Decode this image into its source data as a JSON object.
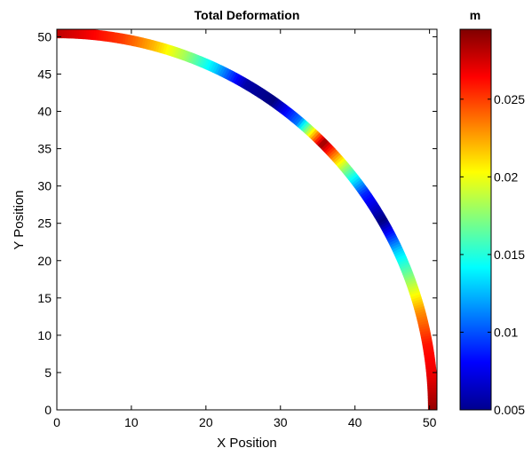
{
  "chart_data": {
    "type": "scatter",
    "title": "Total Deformation",
    "xlabel": "X Position",
    "ylabel": "Y Position",
    "xlim": [
      0,
      51
    ],
    "ylim": [
      0,
      51
    ],
    "xticks": [
      0,
      10,
      20,
      30,
      40,
      50
    ],
    "yticks": [
      0,
      5,
      10,
      15,
      20,
      25,
      30,
      35,
      40,
      45,
      50
    ],
    "grid": false,
    "shape": "quarter-circle arc (thin ring) from (0, 50.5) to (50.5, 0)",
    "inner_radius": 49.8,
    "outer_radius": 51.2,
    "series": [
      {
        "x": [
          0,
          3.5,
          8.8,
          13.1,
          17.3,
          21.3,
          25.3,
          29.0,
          32.5,
          35.7,
          38.7,
          41.3,
          43.7,
          45.8,
          47.5,
          48.8,
          49.8,
          50.3,
          50.5
        ],
        "y": [
          50.5,
          50.4,
          49.7,
          48.8,
          47.4,
          45.7,
          43.6,
          41.3,
          38.7,
          35.7,
          32.5,
          29.0,
          25.3,
          21.3,
          17.3,
          13.1,
          8.8,
          4.4,
          0
        ],
        "values": [
          0.028,
          0.027,
          0.025,
          0.022,
          0.018,
          0.013,
          0.006,
          0.005,
          0.011,
          0.029,
          0.018,
          0.009,
          0.005,
          0.013,
          0.018,
          0.023,
          0.026,
          0.027,
          0.029
        ]
      }
    ],
    "colorbar": {
      "label": "m",
      "min": 0.005,
      "max": 0.0295,
      "ticks": [
        0.005,
        0.01,
        0.015,
        0.02,
        0.025
      ],
      "tick_labels": [
        "0.005",
        "0.01",
        "0.015",
        "0.02",
        "0.025"
      ],
      "colormap": "jet"
    }
  }
}
